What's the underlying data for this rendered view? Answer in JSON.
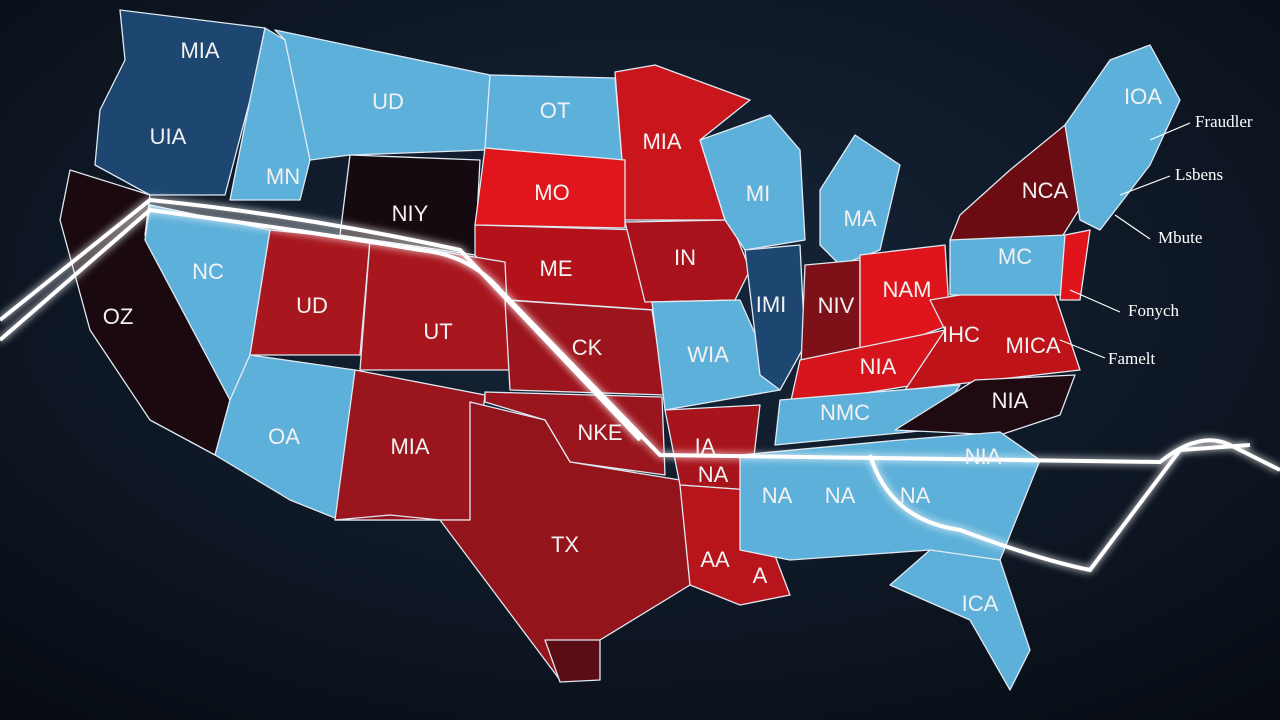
{
  "state_labels": [
    "MIA",
    "UD",
    "OT",
    "MIA",
    "IOA",
    "UIA",
    "MN",
    "NIY",
    "MO",
    "MI",
    "MA",
    "NCA",
    "NC",
    "ME",
    "IN",
    "MC",
    "OZ",
    "UD",
    "UT",
    "CK",
    "WIA",
    "IMI",
    "NIV",
    "NAM",
    "IHC",
    "MICA",
    "NIA",
    "NMC",
    "NIA",
    "OA",
    "MIA",
    "NKE",
    "IA",
    "NA",
    "NIA",
    "NA",
    "NA",
    "NA",
    "TX",
    "AA",
    "A",
    "ICA"
  ],
  "callouts": [
    "Fraudler",
    "Lsbens",
    "Mbute",
    "Fonych",
    "Famelt"
  ]
}
